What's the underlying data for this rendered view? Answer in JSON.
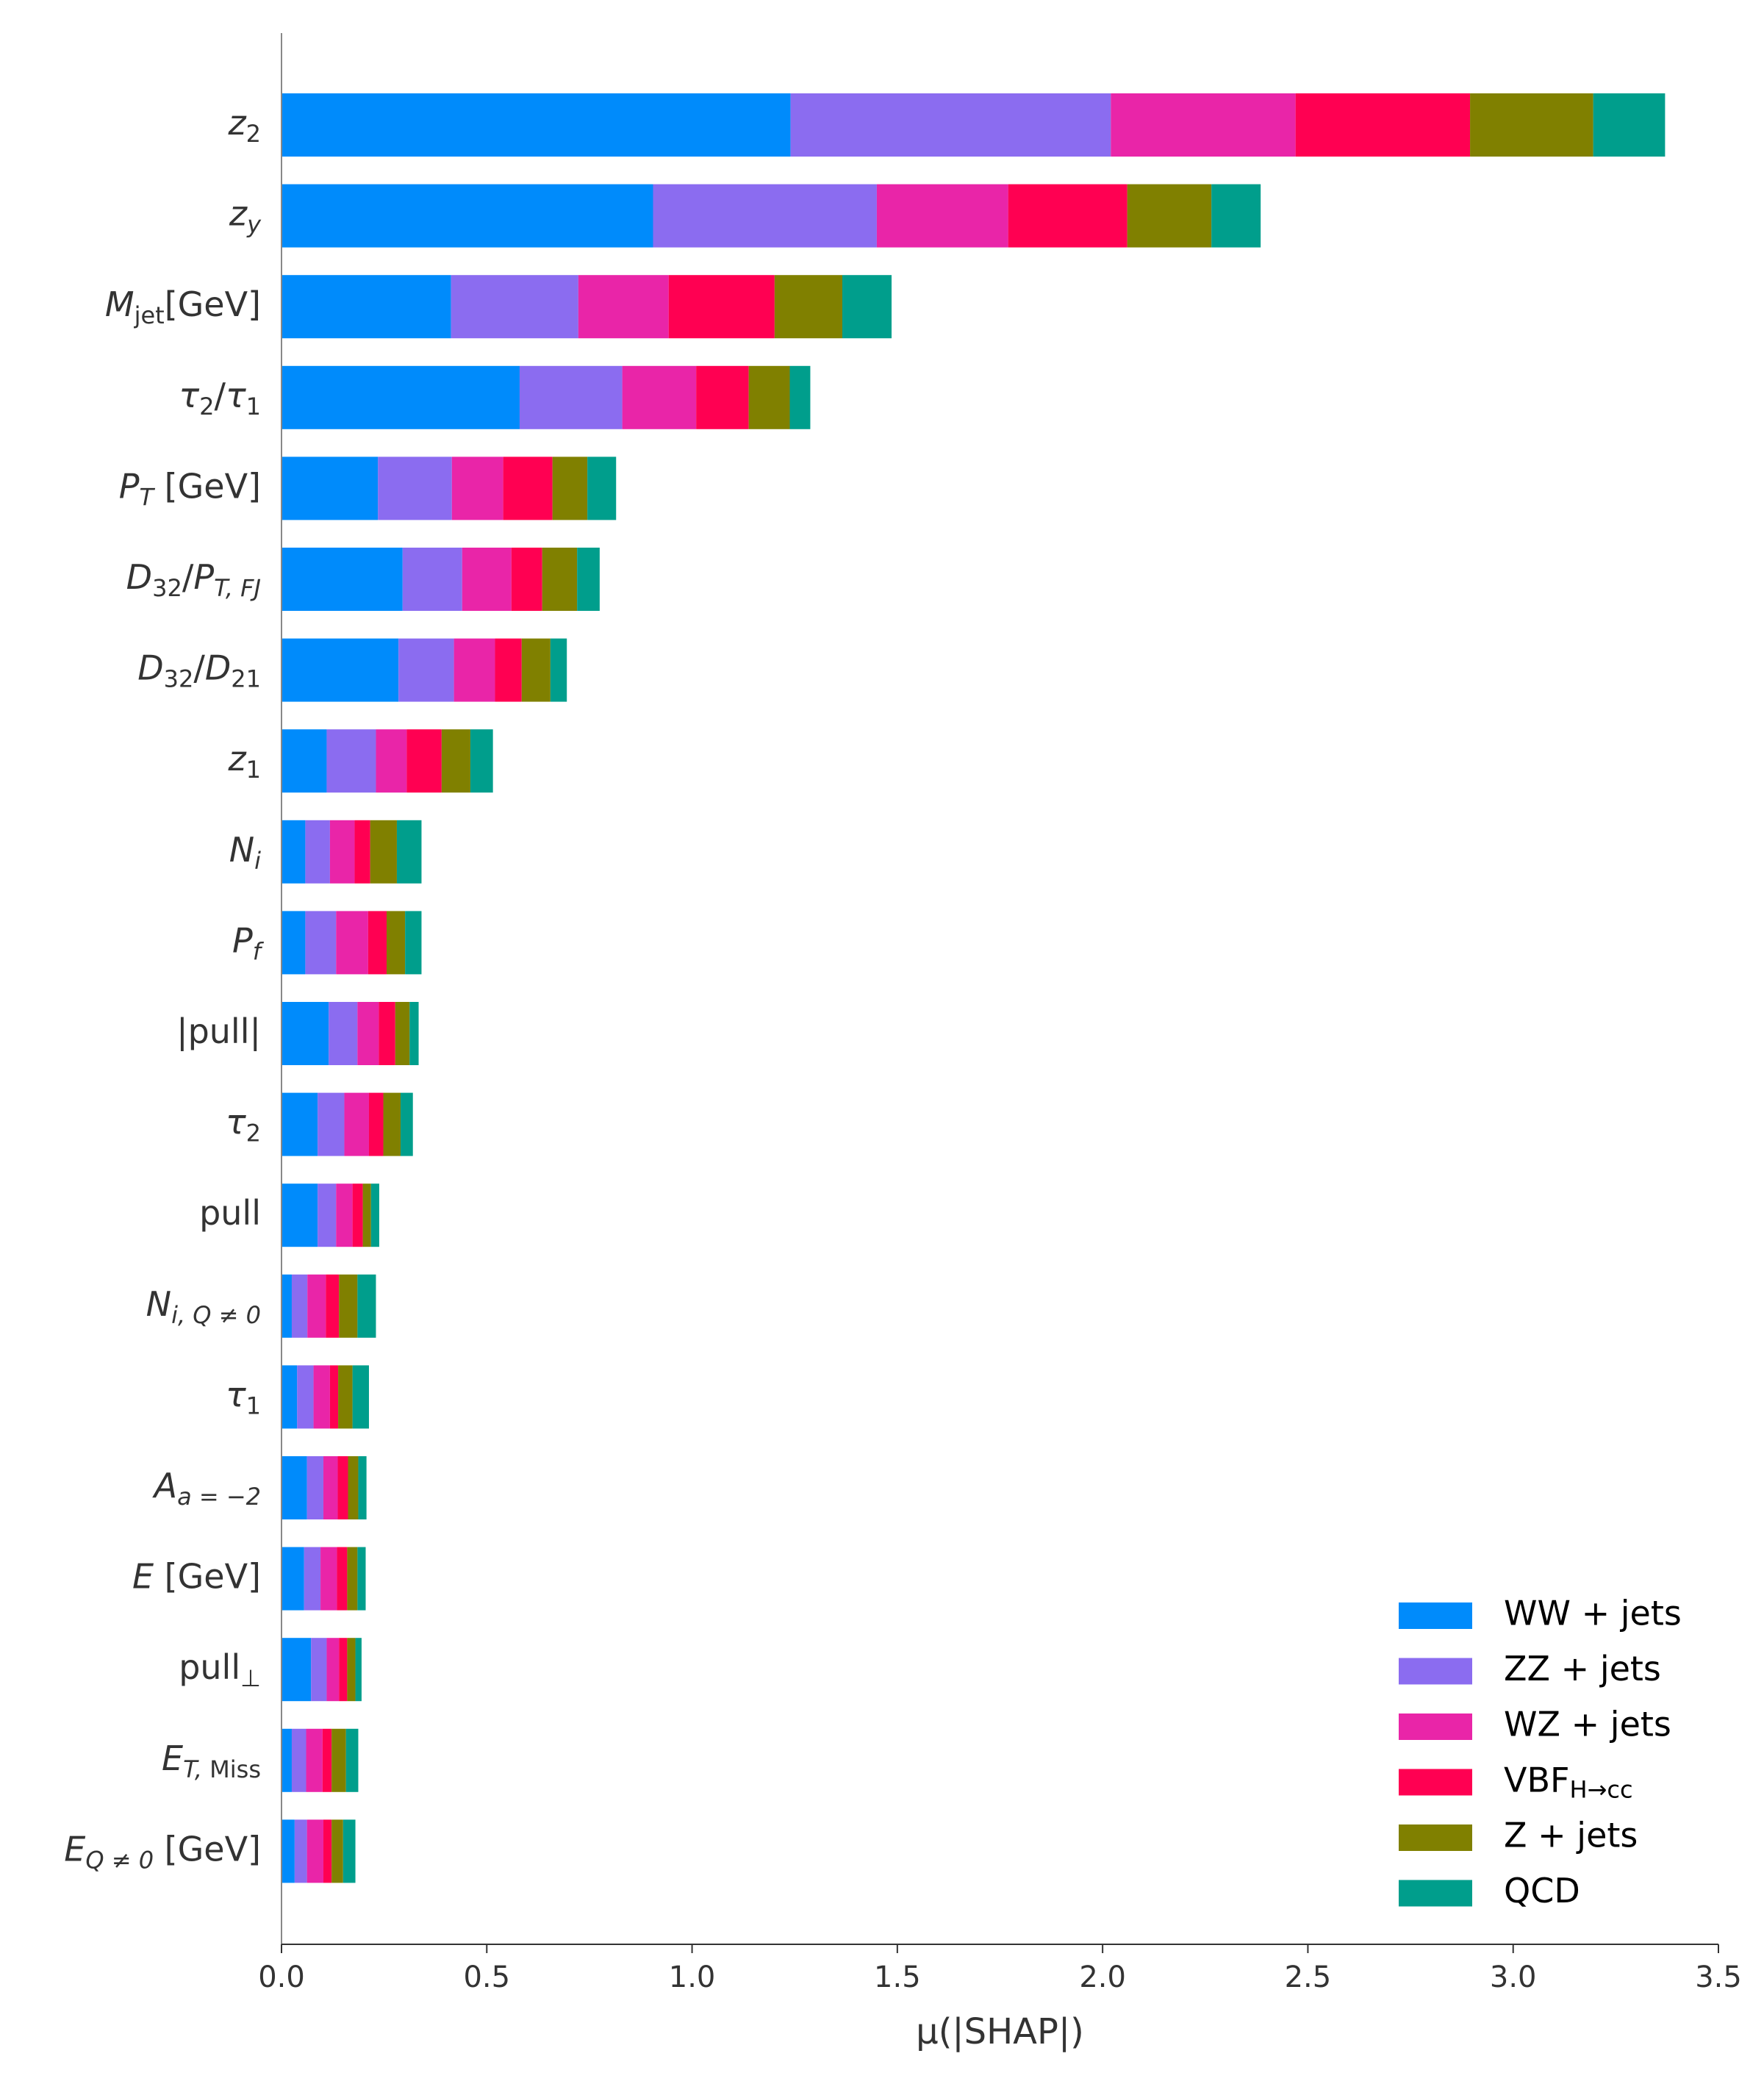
{
  "chart_data": {
    "type": "bar",
    "orientation": "horizontal",
    "stacked": true,
    "xlabel": "μ(|SHAP|)",
    "xlim": [
      0,
      3.5
    ],
    "xticks": [
      "0.0",
      "0.5",
      "1.0",
      "1.5",
      "2.0",
      "2.5",
      "3.0",
      "3.5"
    ],
    "legend_position": "bottom-right",
    "categories": [
      "z2",
      "zy",
      "Mjet[GeV]",
      "τ2/τ1",
      "PT [GeV]",
      "D32/PT,FJ",
      "D32/D21",
      "z1",
      "Ni",
      "Pf",
      "|pull|",
      "τ2",
      "pull",
      "Ni,Q≠0",
      "τ1",
      "Aa=−2",
      "E [GeV]",
      "pull⊥",
      "ET,Miss",
      "EQ≠0 [GeV]"
    ],
    "series": [
      {
        "name": "WW + jets",
        "color": "#008bfb",
        "values": [
          1.24,
          0.905,
          0.413,
          0.58,
          0.235,
          0.295,
          0.285,
          0.11,
          0.058,
          0.058,
          0.115,
          0.088,
          0.088,
          0.025,
          0.038,
          0.062,
          0.055,
          0.072,
          0.025,
          0.032
        ]
      },
      {
        "name": "ZZ + jets",
        "color": "#8b6cf0",
        "values": [
          0.78,
          0.545,
          0.31,
          0.25,
          0.18,
          0.145,
          0.135,
          0.12,
          0.06,
          0.075,
          0.07,
          0.065,
          0.045,
          0.038,
          0.04,
          0.04,
          0.04,
          0.038,
          0.035,
          0.03
        ]
      },
      {
        "name": "WZ + jets",
        "color": "#e925a8",
        "values": [
          0.45,
          0.32,
          0.22,
          0.18,
          0.125,
          0.12,
          0.1,
          0.075,
          0.06,
          0.078,
          0.052,
          0.06,
          0.04,
          0.045,
          0.04,
          0.035,
          0.04,
          0.03,
          0.04,
          0.04
        ]
      },
      {
        "name": "VBF_H→cc",
        "color": "#ff0052",
        "values": [
          0.425,
          0.29,
          0.258,
          0.128,
          0.12,
          0.075,
          0.065,
          0.085,
          0.038,
          0.045,
          0.04,
          0.035,
          0.025,
          0.032,
          0.02,
          0.025,
          0.025,
          0.02,
          0.022,
          0.02
        ]
      },
      {
        "name": "Z + jets",
        "color": "#808000",
        "values": [
          0.3,
          0.205,
          0.165,
          0.1,
          0.085,
          0.085,
          0.07,
          0.07,
          0.065,
          0.045,
          0.035,
          0.042,
          0.02,
          0.045,
          0.035,
          0.025,
          0.025,
          0.02,
          0.035,
          0.028
        ]
      },
      {
        "name": "QCD",
        "color": "#009e8c",
        "values": [
          0.175,
          0.12,
          0.12,
          0.05,
          0.07,
          0.055,
          0.04,
          0.055,
          0.06,
          0.04,
          0.022,
          0.03,
          0.02,
          0.045,
          0.04,
          0.02,
          0.02,
          0.015,
          0.03,
          0.03
        ]
      }
    ]
  }
}
